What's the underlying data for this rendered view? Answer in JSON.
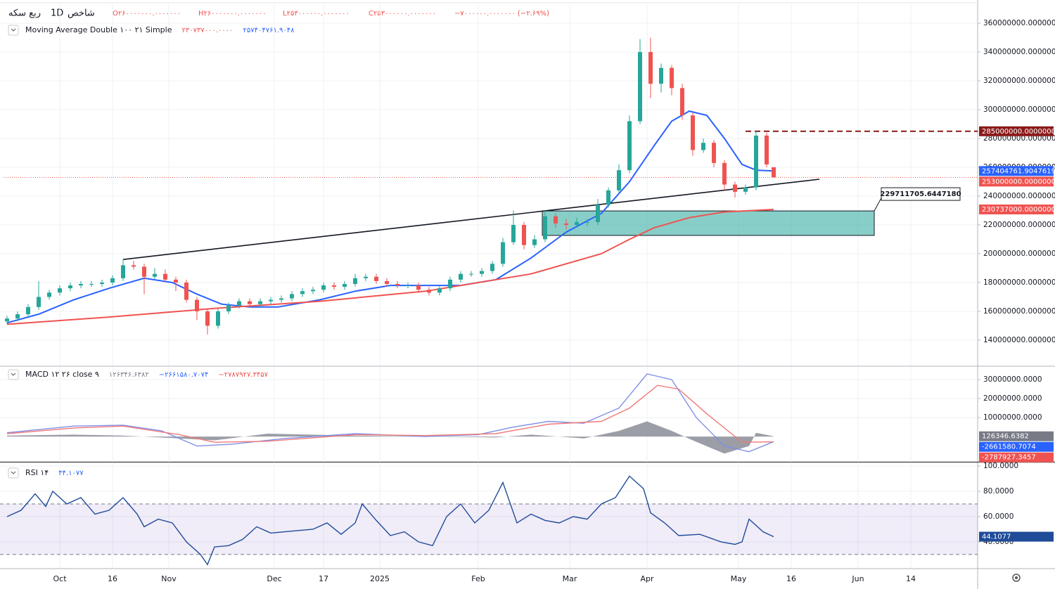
{
  "header": {
    "symbol": "ربع سکه",
    "interval": "1D",
    "exchange": "شاخص",
    "open": "O۲۶۰۰۰۰۰۰۰.۰۰۰۰۰۰۰",
    "high": "H۲۶۰۰۰۰۰۰۰.۰۰۰۰۰۰۰",
    "low": "L۲۵۳۰۰۰۰۰۰.۰۰۰۰۰۰۰",
    "close": "C۲۵۳۰۰۰۰۰۰.۰۰۰۰۰۰۰",
    "change": "−۷۰۰۰۰۰۰.۰۰۰۰۰۰۰ (−۲.۶۹%)"
  },
  "chart_data": [
    {
      "type": "candlestick",
      "legend_title": "Moving Average Double ۱۰۰ ۲۱ Simple",
      "legend_values": [
        "۲۳۰۷۳۷۰۰۰.۰۰۰۰",
        "۲۵۷۴۰۴۷۶۱.۹۰۴۸"
      ],
      "legend_colors": [
        "#ef5350",
        "#2962ff"
      ],
      "xlim": [
        0,
        277
      ],
      "ylim": [
        122400000,
        373700000
      ],
      "grid": true,
      "xticks": [
        {
          "value": 16,
          "label": "Oct"
        },
        {
          "value": 31,
          "label": "16"
        },
        {
          "value": 47,
          "label": "Nov"
        },
        {
          "value": 77,
          "label": "Dec"
        },
        {
          "value": 91,
          "label": "17"
        },
        {
          "value": 107,
          "label": "2025"
        },
        {
          "value": 135,
          "label": "Feb"
        },
        {
          "value": 161,
          "label": "Mar"
        },
        {
          "value": 183,
          "label": "Apr"
        },
        {
          "value": 209,
          "label": "May"
        },
        {
          "value": 224,
          "label": "16"
        },
        {
          "value": 243,
          "label": "Jun"
        },
        {
          "value": 258,
          "label": "14"
        }
      ],
      "yticks": [
        {
          "value": 360000000,
          "label": "360000000.0000000"
        },
        {
          "value": 340000000,
          "label": "340000000.0000000"
        },
        {
          "value": 320000000,
          "label": "320000000.0000000"
        },
        {
          "value": 300000000,
          "label": "300000000.0000000"
        },
        {
          "value": 280000000,
          "label": "280000000.0000000"
        },
        {
          "value": 260000000,
          "label": "260000000.0000000"
        },
        {
          "value": 240000000,
          "label": "240000000.0000000"
        },
        {
          "value": 220000000,
          "label": "220000000.0000000"
        },
        {
          "value": 200000000,
          "label": "200000000.0000000"
        },
        {
          "value": 180000000,
          "label": "180000000.0000000"
        },
        {
          "value": 160000000,
          "label": "160000000.0000000"
        },
        {
          "value": 140000000,
          "label": "140000000.0000000"
        }
      ],
      "candles": {
        "up_color": "#26a69a",
        "down_color": "#ef5350",
        "x": [
          1,
          4,
          7,
          10,
          13,
          16,
          19,
          22,
          25,
          28,
          31,
          34,
          37,
          40,
          43,
          46,
          49,
          52,
          55,
          58,
          61,
          64,
          67,
          70,
          73,
          76,
          79,
          82,
          85,
          88,
          91,
          94,
          97,
          100,
          103,
          106,
          109,
          112,
          115,
          118,
          121,
          124,
          127,
          130,
          133,
          136,
          139,
          142,
          145,
          148,
          151,
          154,
          157,
          160,
          163,
          166,
          169,
          172,
          175,
          178,
          181,
          184,
          187,
          190,
          193,
          196,
          199,
          202,
          205,
          208,
          211,
          214,
          217,
          219
        ],
        "open": [
          153000000,
          155000000,
          158000000,
          163000000,
          170000000,
          173000000,
          176000000,
          178000000,
          179000000,
          179000000,
          180000000,
          183000000,
          192000000,
          191000000,
          184000000,
          186000000,
          182000000,
          180000000,
          168000000,
          160000000,
          150000000,
          160000000,
          164000000,
          167000000,
          165000000,
          167000000,
          168000000,
          169000000,
          172000000,
          174000000,
          175000000,
          178000000,
          177000000,
          179000000,
          183000000,
          184000000,
          181000000,
          179000000,
          178000000,
          178000000,
          175000000,
          173000000,
          176000000,
          182000000,
          186000000,
          186000000,
          188000000,
          193000000,
          208000000,
          220000000,
          206000000,
          210000000,
          226000000,
          221000000,
          220000000,
          222000000,
          222000000,
          234000000,
          244000000,
          258000000,
          292000000,
          340000000,
          318000000,
          329000000,
          315000000,
          296000000,
          272000000,
          277000000,
          263000000,
          248000000,
          243000000,
          246000000,
          282000000,
          260000000
        ],
        "high": [
          157000000,
          160000000,
          165000000,
          181000000,
          175000000,
          178000000,
          180000000,
          181000000,
          181000000,
          182000000,
          185000000,
          196000000,
          195000000,
          193000000,
          190000000,
          189000000,
          184000000,
          182000000,
          170000000,
          162000000,
          162000000,
          166000000,
          169000000,
          169000000,
          169000000,
          170000000,
          171000000,
          174000000,
          176000000,
          177000000,
          180000000,
          180000000,
          181000000,
          186000000,
          186000000,
          186000000,
          183000000,
          181000000,
          180000000,
          180000000,
          177000000,
          178000000,
          184000000,
          188000000,
          188000000,
          190000000,
          195000000,
          211000000,
          230000000,
          222000000,
          213000000,
          230000000,
          228000000,
          224000000,
          225000000,
          224000000,
          238000000,
          246000000,
          262000000,
          296000000,
          349000000,
          350000000,
          332000000,
          331000000,
          318000000,
          298000000,
          280000000,
          279000000,
          265000000,
          250000000,
          248000000,
          285000000,
          284000000,
          260000000
        ],
        "low": [
          151000000,
          153000000,
          156000000,
          161000000,
          168000000,
          171000000,
          174000000,
          176000000,
          177000000,
          177000000,
          178000000,
          181000000,
          189000000,
          172000000,
          182000000,
          180000000,
          174000000,
          166000000,
          154000000,
          144000000,
          148000000,
          158000000,
          162000000,
          163000000,
          163000000,
          165000000,
          166000000,
          167000000,
          170000000,
          172000000,
          173000000,
          175000000,
          175000000,
          177000000,
          181000000,
          179000000,
          177000000,
          176000000,
          176000000,
          173000000,
          171000000,
          171000000,
          174000000,
          180000000,
          184000000,
          184000000,
          186000000,
          191000000,
          206000000,
          203000000,
          204000000,
          208000000,
          218000000,
          217000000,
          218000000,
          219000000,
          220000000,
          232000000,
          242000000,
          256000000,
          290000000,
          308000000,
          312000000,
          310000000,
          293000000,
          268000000,
          270000000,
          260000000,
          244000000,
          239000000,
          241000000,
          244000000,
          260000000,
          253000000
        ],
        "close": [
          155000000,
          158000000,
          163000000,
          170000000,
          173000000,
          176000000,
          178000000,
          179000000,
          179000000,
          180000000,
          183000000,
          192000000,
          191000000,
          184000000,
          186000000,
          182000000,
          180000000,
          168000000,
          160000000,
          150000000,
          160000000,
          164000000,
          167000000,
          165000000,
          167000000,
          168000000,
          169000000,
          172000000,
          174000000,
          175000000,
          178000000,
          177000000,
          179000000,
          183000000,
          184000000,
          181000000,
          179000000,
          178000000,
          178000000,
          175000000,
          173000000,
          176000000,
          182000000,
          186000000,
          186000000,
          188000000,
          193000000,
          208000000,
          220000000,
          206000000,
          210000000,
          226000000,
          221000000,
          220000000,
          222000000,
          222000000,
          234000000,
          244000000,
          258000000,
          292000000,
          340000000,
          318000000,
          329000000,
          315000000,
          296000000,
          272000000,
          277000000,
          263000000,
          248000000,
          243000000,
          246000000,
          282000000,
          262000000,
          253000000
        ]
      },
      "series": [
        {
          "type": "line",
          "color": "#2962ff",
          "x": [
            1,
            10,
            20,
            30,
            40,
            48,
            55,
            62,
            70,
            78,
            90,
            100,
            110,
            120,
            130,
            140,
            150,
            160,
            170,
            178,
            185,
            190,
            195,
            200,
            205,
            210,
            214,
            219
          ],
          "values": [
            152000000,
            158000000,
            168000000,
            176000000,
            183000000,
            180000000,
            172000000,
            165000000,
            163000000,
            163000000,
            168000000,
            174000000,
            178000000,
            178000000,
            178000000,
            182000000,
            197000000,
            215000000,
            228000000,
            250000000,
            275000000,
            292000000,
            299000000,
            296000000,
            280000000,
            262000000,
            258000000,
            257404761.9047619
          ]
        },
        {
          "type": "line",
          "color": "#ef5350",
          "x": [
            1,
            30,
            60,
            90,
            120,
            150,
            170,
            178,
            185,
            195,
            205,
            219
          ],
          "values": [
            151000000,
            156000000,
            162000000,
            167000000,
            174000000,
            186000000,
            200000000,
            210000000,
            218000000,
            225000000,
            229000000,
            230737000
          ]
        }
      ],
      "trendline": {
        "color": "#131722",
        "x": [
          34,
          232
        ],
        "values": [
          196000000,
          251700000
        ]
      },
      "zone": {
        "color": "rgba(38,166,154,0.55)",
        "x": [
          153.2,
          247.6
        ],
        "y": [
          212700000,
          229711705.644718
        ],
        "label": "229711705.6447180"
      },
      "hlines": [
        {
          "value": 285000000,
          "color": "#8b1a1a",
          "style": "dashed",
          "x_start": 211
        },
        {
          "value": 253000000,
          "color": "#ef5350",
          "style": "dotted",
          "x_start": 0
        }
      ],
      "price_tags": [
        {
          "value": 285000000,
          "label": "285000000.0000000",
          "color": "#8b1a1a"
        },
        {
          "value": 257404761.9047619,
          "label": "257404761.9047619",
          "color": "#2962ff"
        },
        {
          "value": 253000000,
          "label": "253000000.0000000",
          "color": "#ef5350"
        },
        {
          "value": 230737000,
          "label": "230737000.0000000",
          "color": "#ef5350"
        }
      ]
    },
    {
      "type": "line",
      "legend_title": "MACD ۱۲ ۲۶ close ۹",
      "legend_values": [
        "۱۲۶۳۴۶.۶۳۸۲",
        "−۲۶۶۱۵۸۰.۷۰۷۴",
        "−۲۷۸۷۹۲۷.۳۴۵۷"
      ],
      "legend_colors": [
        "#787b86",
        "#2962ff",
        "#ef5350"
      ],
      "xlim": [
        0,
        277
      ],
      "ylim": [
        -13300000,
        36700000
      ],
      "yticks": [
        {
          "value": 30000000,
          "label": "30000000.0000"
        },
        {
          "value": 20000000,
          "label": "20000000.0000"
        },
        {
          "value": 10000000,
          "label": "10000000.0000"
        }
      ],
      "series": [
        {
          "type": "area",
          "color": "#8a8d96",
          "x": [
            1,
            20,
            34,
            50,
            60,
            75,
            100,
            140,
            150,
            165,
            175,
            183,
            190,
            196,
            205,
            212,
            214,
            219
          ],
          "values": [
            500000,
            1000000,
            500000,
            -1000000,
            -2000000,
            1500000,
            500000,
            -500000,
            1000000,
            -1000000,
            3000000,
            8000000,
            3000000,
            -2000000,
            -9000000,
            -5000000,
            2000000,
            126346.6382
          ]
        },
        {
          "type": "line",
          "color": "#7e8fe8",
          "x": [
            1,
            20,
            34,
            45,
            55,
            65,
            80,
            100,
            120,
            135,
            145,
            155,
            165,
            175,
            183,
            190,
            197,
            205,
            212,
            219
          ],
          "values": [
            2000000,
            5500000,
            6000000,
            3000000,
            -5000000,
            -4000000,
            -1000000,
            1500000,
            0,
            1000000,
            5000000,
            8000000,
            7000000,
            15000000,
            33000000,
            30000000,
            10000000,
            -5000000,
            -8000000,
            -2661580.7074
          ]
        },
        {
          "type": "line",
          "color": "#ef7a78",
          "x": [
            1,
            20,
            34,
            50,
            60,
            75,
            100,
            120,
            140,
            155,
            170,
            178,
            186,
            192,
            200,
            210,
            219
          ],
          "values": [
            1500000,
            4500000,
            5500000,
            1000000,
            -3000000,
            -2500000,
            1000000,
            500000,
            1500000,
            6500000,
            8000000,
            15000000,
            27000000,
            25000000,
            12000000,
            -3000000,
            -2787927.3457
          ]
        }
      ],
      "price_tags": [
        {
          "value": 126346.6382,
          "label": "126346.6382",
          "color": "#787b86"
        },
        {
          "value": -2661580.7074,
          "label": "-2661580.7074",
          "color": "#2962ff"
        },
        {
          "value": -2787927.3457,
          "label": "-2787927.3457",
          "color": "#ef5350"
        }
      ]
    },
    {
      "type": "line",
      "legend_title": "RSI ۱۴",
      "legend_values": [
        "۴۴.۱۰۷۷"
      ],
      "legend_colors": [
        "#2962ff"
      ],
      "xlim": [
        0,
        277
      ],
      "ylim": [
        19.4,
        102.8
      ],
      "band": [
        30,
        70
      ],
      "band_color": "rgba(149,117,205,0.14)",
      "yticks": [
        {
          "value": 100,
          "label": "100.0000"
        },
        {
          "value": 80,
          "label": "80.0000"
        },
        {
          "value": 60,
          "label": "60.0000"
        },
        {
          "value": 40,
          "label": "40.0000"
        }
      ],
      "series": [
        {
          "type": "line",
          "color": "#1f4b99",
          "x": [
            1,
            5,
            9,
            12,
            14,
            18,
            22,
            26,
            30,
            34,
            38,
            40,
            44,
            48,
            52,
            56,
            58,
            60,
            64,
            68,
            72,
            76,
            80,
            88,
            92,
            96,
            100,
            102,
            106,
            110,
            114,
            118,
            122,
            126,
            130,
            134,
            138,
            142,
            146,
            150,
            154,
            158,
            162,
            166,
            170,
            174,
            178,
            182,
            184,
            188,
            192,
            198,
            204,
            208,
            210,
            212,
            216,
            219
          ],
          "values": [
            60,
            65,
            78,
            68,
            80,
            70,
            75,
            62,
            65,
            75,
            62,
            52,
            58,
            55,
            40,
            30,
            22,
            36,
            37,
            42,
            52,
            47,
            48,
            50,
            55,
            46,
            55,
            70,
            57,
            45,
            48,
            40,
            37,
            60,
            70,
            55,
            65,
            87,
            55,
            62,
            57,
            55,
            60,
            58,
            70,
            75,
            92,
            82,
            63,
            55,
            45,
            46,
            40,
            38,
            40,
            58,
            48,
            44.1077
          ]
        }
      ],
      "price_tags": [
        {
          "value": 44.1077,
          "label": "44.1077",
          "color": "#1f4b99"
        }
      ]
    }
  ]
}
